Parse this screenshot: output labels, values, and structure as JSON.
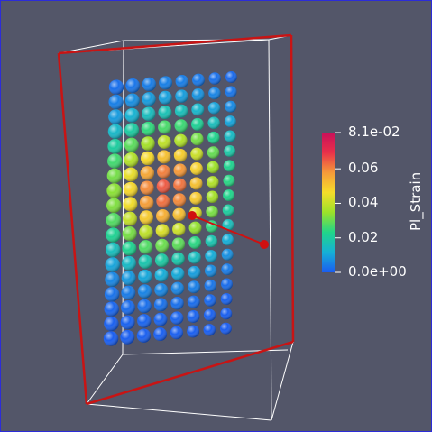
{
  "colorbar": {
    "title": "Pl_Strain",
    "range": [
      0.0,
      0.081
    ],
    "labels": [
      "8.1e-02",
      "0.06",
      "0.04",
      "0.02",
      "0.0e+00"
    ],
    "label_values": [
      0.081,
      0.06,
      0.04,
      0.02,
      0.0
    ],
    "colormap": [
      "#1a5cf0",
      "#16b0d6",
      "#20d58a",
      "#9be22a",
      "#f5dd2a",
      "#f59a3a",
      "#e8304a",
      "#c8105a"
    ]
  },
  "scene": {
    "background": "#535669",
    "outline_color": "#ffffff",
    "selection_color": "#d01010",
    "sphere_grid": {
      "columns": 8,
      "rows": 18,
      "min_value": 0.0,
      "peak_value": 0.065
    }
  }
}
